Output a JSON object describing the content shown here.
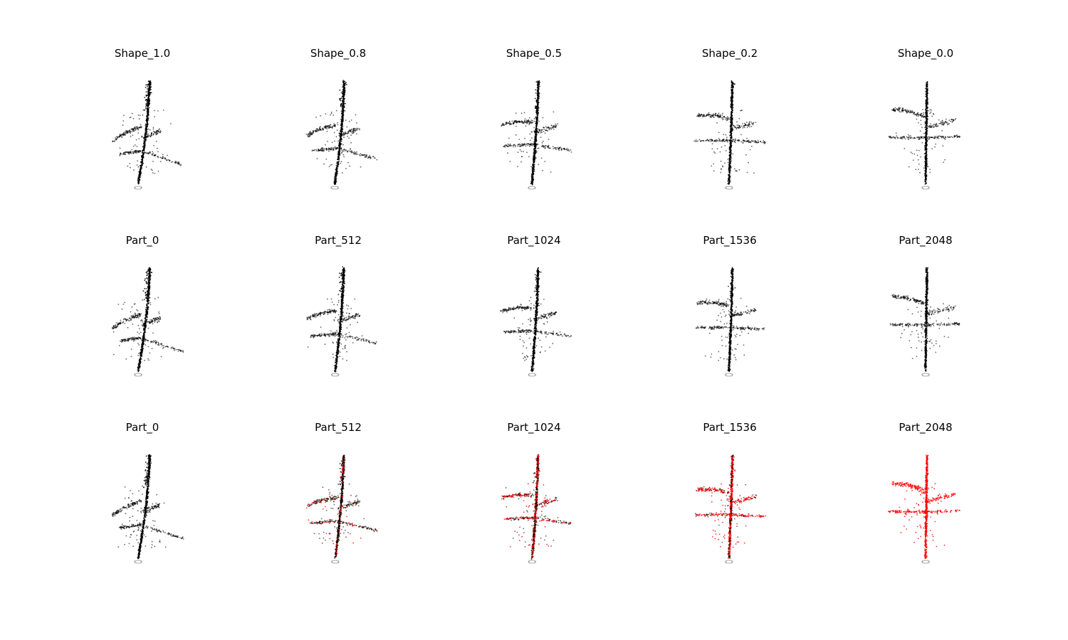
{
  "colors": {
    "background": "#ffffff",
    "original_points": "#000000",
    "part_points": "#ff0000",
    "pot_points": "#999999"
  },
  "rows": [
    {
      "id": "shape-row",
      "panels": [
        {
          "title": "Shape_1.0",
          "shape": 1.0,
          "part_fraction": 0.0
        },
        {
          "title": "Shape_0.8",
          "shape": 0.8,
          "part_fraction": 0.0
        },
        {
          "title": "Shape_0.5",
          "shape": 0.5,
          "part_fraction": 0.0
        },
        {
          "title": "Shape_0.2",
          "shape": 0.2,
          "part_fraction": 0.0
        },
        {
          "title": "Shape_0.0",
          "shape": 0.0,
          "part_fraction": 0.0
        }
      ]
    },
    {
      "id": "part-row",
      "panels": [
        {
          "title": "Part_0",
          "shape": 1.0,
          "part_fraction": 0.0
        },
        {
          "title": "Part_512",
          "shape": 0.7,
          "part_fraction": 0.0
        },
        {
          "title": "Part_1024",
          "shape": 0.45,
          "part_fraction": 0.0
        },
        {
          "title": "Part_1536",
          "shape": 0.2,
          "part_fraction": 0.0
        },
        {
          "title": "Part_2048",
          "shape": 0.0,
          "part_fraction": 0.0
        }
      ]
    },
    {
      "id": "part-highlight-row",
      "panels": [
        {
          "title": "Part_0",
          "shape": 1.0,
          "part_fraction": 0.0
        },
        {
          "title": "Part_512",
          "shape": 0.7,
          "part_fraction": 0.25
        },
        {
          "title": "Part_1024",
          "shape": 0.45,
          "part_fraction": 0.5
        },
        {
          "title": "Part_1536",
          "shape": 0.2,
          "part_fraction": 0.75
        },
        {
          "title": "Part_2048",
          "shape": 0.0,
          "part_fraction": 1.0
        }
      ]
    }
  ]
}
